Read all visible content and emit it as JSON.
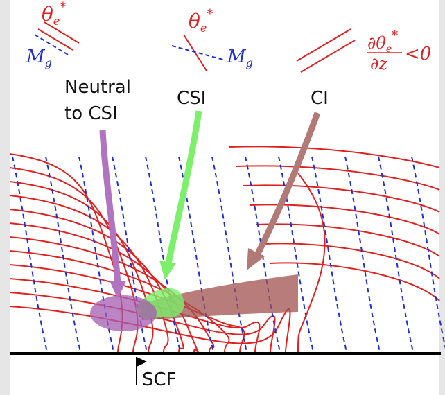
{
  "legend": {
    "theta_e_star": {
      "symbol": "θ",
      "subscript": "e",
      "superscript": "*"
    },
    "m_g": {
      "symbol": "M",
      "subscript": "g"
    },
    "stability_condition": {
      "numerator": {
        "operator": "∂",
        "symbol": "θ",
        "subscript": "e",
        "superscript": "*"
      },
      "denominator": "∂z",
      "relation": "<0"
    }
  },
  "labels": {
    "neutral": [
      "Neutral",
      "to CSI"
    ],
    "csi": "CSI",
    "ci": "CI",
    "front": "SCF"
  }
}
